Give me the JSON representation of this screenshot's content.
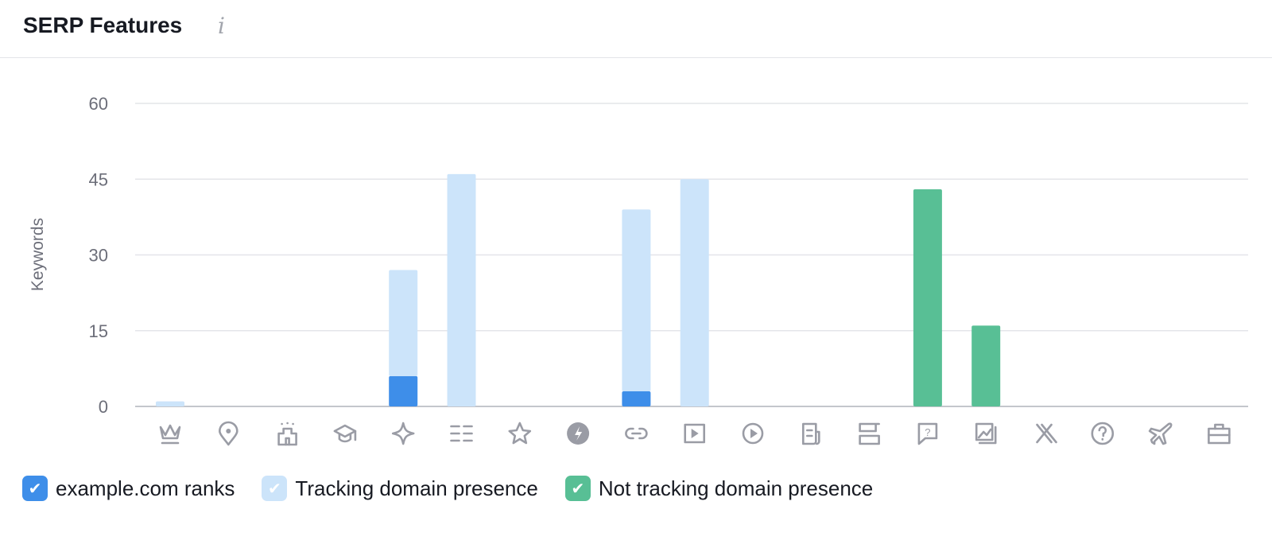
{
  "header": {
    "title": "SERP Features",
    "info_icon": "info-icon"
  },
  "chart_data": {
    "type": "bar",
    "stacked": true,
    "ylabel": "Keywords",
    "ylim": [
      0,
      60
    ],
    "yticks": [
      0,
      15,
      30,
      45,
      60
    ],
    "grid": true,
    "legend_placement": "bottom-left",
    "categories": [
      "featured-snippet-icon",
      "local-pack-icon",
      "hotels-icon",
      "knowledge-panel-icon",
      "ai-overview-icon",
      "sitelinks-icon",
      "reviews-icon",
      "amp-icon",
      "image-link-icon",
      "video-icon",
      "featured-video-icon",
      "top-stories-icon",
      "carousel-icon",
      "people-also-ask-icon",
      "image-pack-icon",
      "twitter-x-icon",
      "faq-icon",
      "flights-icon",
      "jobs-icon"
    ],
    "series": [
      {
        "name": "example.com ranks",
        "color": "#3e8ee9",
        "values": [
          0,
          0,
          0,
          0,
          6,
          0,
          0,
          0,
          3,
          0,
          0,
          0,
          0,
          0,
          0,
          0,
          0,
          0,
          0
        ]
      },
      {
        "name": "Tracking domain presence",
        "color": "#cce4fa",
        "values": [
          1,
          0,
          0,
          0,
          21,
          46,
          0,
          0,
          36,
          45,
          0,
          0,
          0,
          0,
          0,
          0,
          0,
          0,
          0
        ]
      },
      {
        "name": "Not tracking domain presence",
        "color": "#58bf95",
        "values": [
          0,
          0,
          0,
          0,
          0,
          0,
          0,
          0,
          0,
          0,
          0,
          0,
          0,
          43,
          16,
          0,
          0,
          0,
          0
        ]
      }
    ]
  }
}
